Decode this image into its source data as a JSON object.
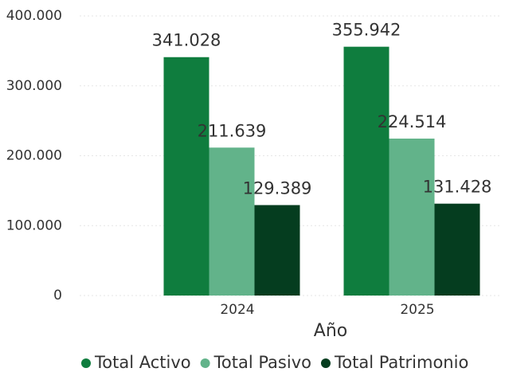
{
  "chart_data": {
    "type": "bar",
    "x_label": "Año",
    "categories": [
      "2024",
      "2025"
    ],
    "series": [
      {
        "name": "Total Activo",
        "color": "#0f7d3e",
        "values": [
          341028,
          355942
        ],
        "value_labels": [
          "341.028",
          "355.942"
        ]
      },
      {
        "name": "Total Pasivo",
        "color": "#62b38a",
        "values": [
          211639,
          224514
        ],
        "value_labels": [
          "211.639",
          "224.514"
        ]
      },
      {
        "name": "Total Patrimonio",
        "color": "#053d1f",
        "values": [
          129389,
          131428
        ],
        "value_labels": [
          "129.389",
          "131.428"
        ]
      }
    ],
    "ylim": [
      0,
      400000
    ],
    "yticks": [
      0,
      {
        "value": 100000,
        "label": "100.000"
      },
      {
        "value": 200000,
        "label": "200.000"
      },
      {
        "value": 300000,
        "label": "300.000"
      },
      {
        "value": 400000,
        "label": "400.000"
      }
    ],
    "grid": true,
    "legend": "bottom"
  }
}
